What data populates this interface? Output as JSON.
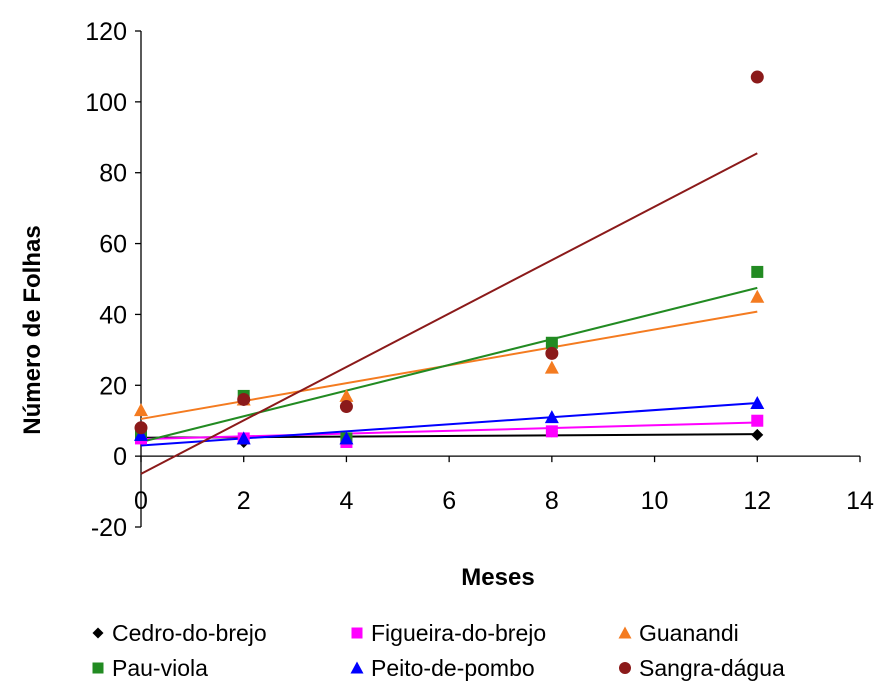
{
  "chart_data": {
    "type": "scatter",
    "title": "",
    "xlabel": "Meses",
    "ylabel": "Número de Folhas",
    "xlim": [
      0,
      14
    ],
    "ylim": [
      -20,
      120
    ],
    "x_ticks": [
      "0",
      "2",
      "4",
      "6",
      "8",
      "10",
      "12",
      "14"
    ],
    "y_ticks": [
      "120",
      "100",
      "80",
      "60",
      "40",
      "20",
      "0",
      "-20"
    ],
    "grid": false,
    "legend_position": "bottom",
    "series": [
      {
        "name": "Cedro-do-brejo",
        "marker": "diamond",
        "color": "#000000",
        "x": [
          0,
          2,
          4,
          8,
          12
        ],
        "y": [
          5,
          4,
          5,
          7,
          6
        ],
        "trendline": {
          "x": [
            0,
            12
          ],
          "y": [
            5.2,
            6.2
          ],
          "color": "#000000"
        }
      },
      {
        "name": "Figueira-do-brejo",
        "marker": "square",
        "color": "#ff00ff",
        "x": [
          0,
          2,
          4,
          8,
          12
        ],
        "y": [
          5,
          5,
          4,
          7,
          10
        ],
        "trendline": {
          "x": [
            0,
            12
          ],
          "y": [
            4.8,
            9.5
          ],
          "color": "#ff00ff"
        }
      },
      {
        "name": "Guanandi",
        "marker": "triangle",
        "color": "#f47b20",
        "x": [
          0,
          2,
          4,
          8,
          12
        ],
        "y": [
          13,
          16,
          17,
          25,
          45
        ],
        "trendline": {
          "x": [
            0,
            12
          ],
          "y": [
            10.5,
            40.8
          ],
          "color": "#f47b20"
        }
      },
      {
        "name": "Pau-viola",
        "marker": "square",
        "color": "#228b22",
        "x": [
          0,
          2,
          4,
          8,
          12
        ],
        "y": [
          6,
          17,
          5,
          32,
          52
        ],
        "trendline": {
          "x": [
            0,
            12
          ],
          "y": [
            4.0,
            47.5
          ],
          "color": "#228b22"
        }
      },
      {
        "name": "Peito-de-pombo",
        "marker": "triangle",
        "color": "#0000ff",
        "x": [
          0,
          2,
          4,
          8,
          12
        ],
        "y": [
          6,
          5,
          5,
          11,
          15
        ],
        "trendline": {
          "x": [
            0,
            12
          ],
          "y": [
            3.0,
            15.0
          ],
          "color": "#0000ff"
        }
      },
      {
        "name": "Sangra-dágua",
        "marker": "circle",
        "color": "#8b1a1a",
        "x": [
          0,
          2,
          4,
          8,
          12
        ],
        "y": [
          8,
          16,
          14,
          29,
          107
        ],
        "trendline": {
          "x": [
            0,
            12
          ],
          "y": [
            -5.0,
            85.5
          ],
          "color": "#8b1a1a"
        }
      }
    ]
  }
}
